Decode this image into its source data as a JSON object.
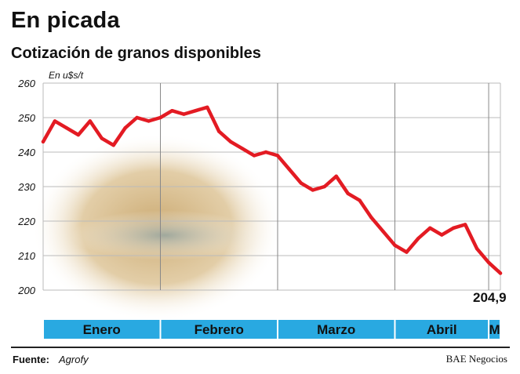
{
  "title": "En picada",
  "subtitle": "Cotización de granos disponibles",
  "footer": {
    "source_label": "Fuente:",
    "source_value": "Agrofy",
    "credit": "BAE Negocios"
  },
  "colors": {
    "line": "#e31b23",
    "month_band": "#29a9e1",
    "grid": "#bbbbbb",
    "month_divider": "#888888"
  },
  "chart_data": {
    "type": "line",
    "title": "En picada",
    "subtitle": "Cotización de granos disponibles",
    "ylabel": "En u$s/t",
    "ylim": [
      200,
      260
    ],
    "yticks": [
      200,
      210,
      220,
      230,
      240,
      250,
      260
    ],
    "grid": true,
    "months": [
      "Enero",
      "Febrero",
      "Marzo",
      "Abril",
      "M"
    ],
    "month_boundaries": [
      0,
      10,
      20,
      30,
      38,
      39
    ],
    "x": [
      0,
      1,
      2,
      3,
      4,
      5,
      6,
      7,
      8,
      9,
      10,
      11,
      12,
      13,
      14,
      15,
      16,
      17,
      18,
      19,
      20,
      21,
      22,
      23,
      24,
      25,
      26,
      27,
      28,
      29,
      30,
      31,
      32,
      33,
      34,
      35,
      36,
      37,
      38,
      39
    ],
    "values": [
      243,
      249,
      247,
      245,
      249,
      244,
      242,
      247,
      250,
      249,
      250,
      252,
      251,
      252,
      253,
      246,
      243,
      241,
      239,
      240,
      239,
      235,
      231,
      229,
      230,
      233,
      228,
      226,
      221,
      217,
      213,
      211,
      215,
      218,
      216,
      218,
      219,
      212,
      208,
      204.9
    ],
    "last_label": "204,9"
  }
}
